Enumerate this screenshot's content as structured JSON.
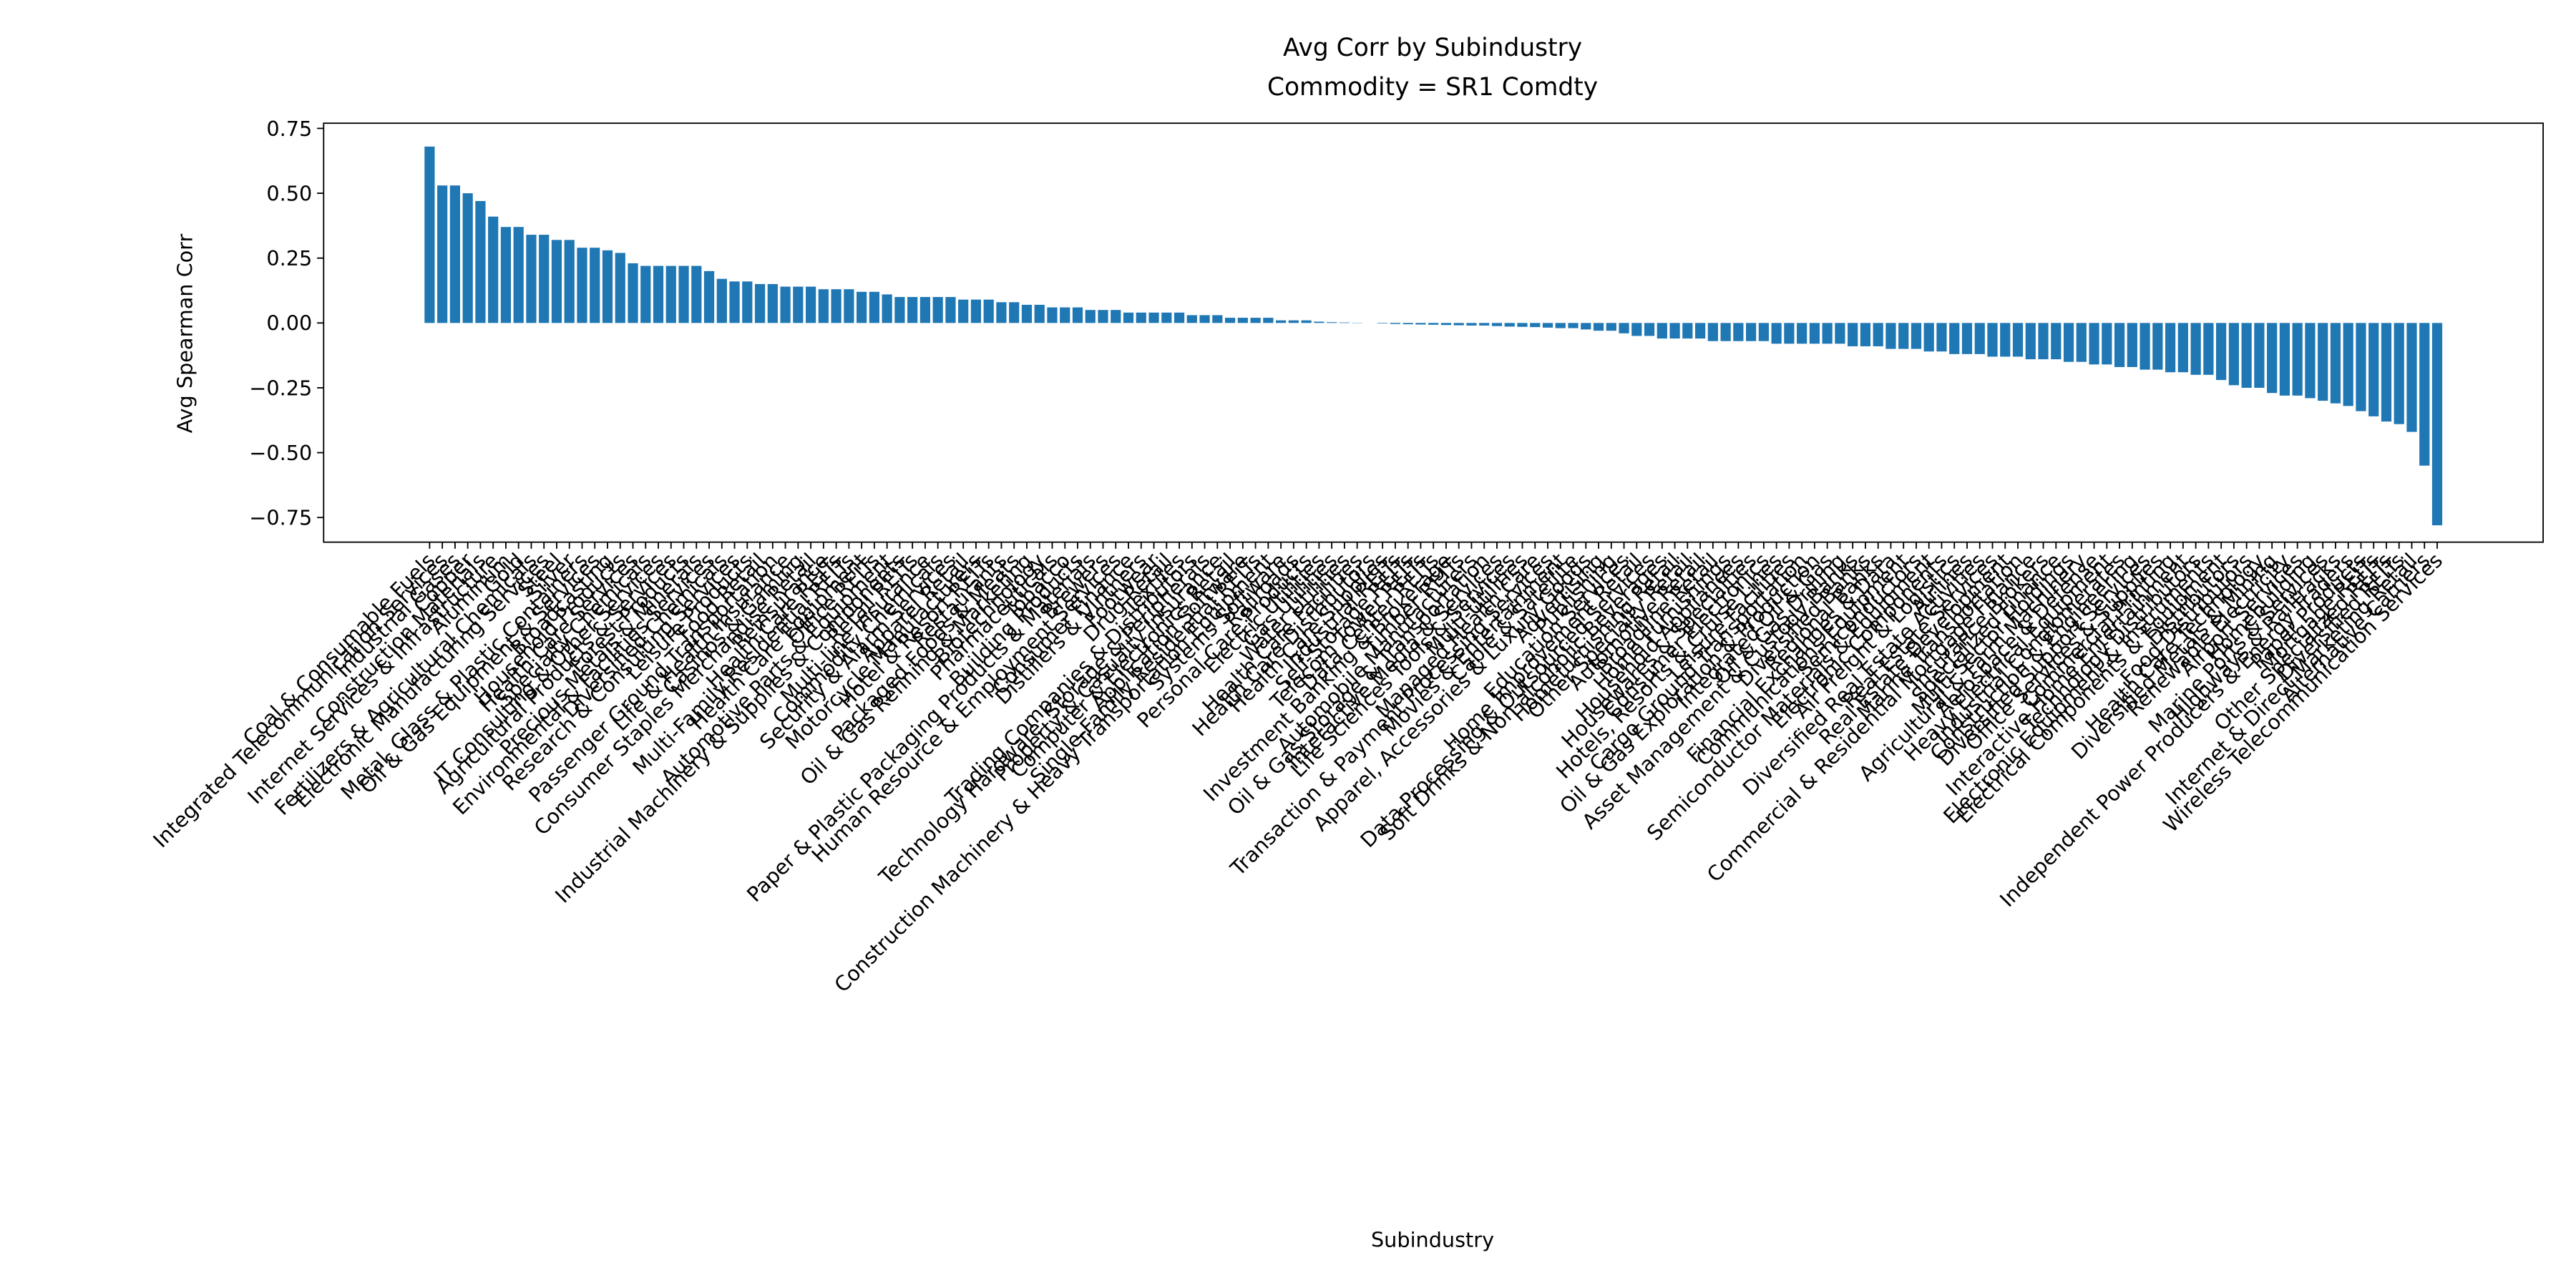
{
  "chart_data": {
    "type": "bar",
    "title": "Avg Corr by Subindustry",
    "subtitle": "Commodity = SR1 Comdty",
    "x_label": "Subindustry",
    "y_label": "Avg Spearman Corr",
    "color": "#1f77b4",
    "grid": false,
    "ylim": [
      -0.845,
      0.77
    ],
    "yticks": [
      {
        "value": -0.75,
        "label": "−0.75"
      },
      {
        "value": -0.5,
        "label": "−0.50"
      },
      {
        "value": -0.25,
        "label": "−0.25"
      },
      {
        "value": 0,
        "label": "0.00"
      },
      {
        "value": 0.25,
        "label": "0.25"
      },
      {
        "value": 0.5,
        "label": "0.50"
      },
      0.75
    ],
    "categories": [
      "Coal & Consumable Fuels",
      "Integrated Telecommunication Services",
      "Industrial Gases",
      "Copper",
      "Construction Materials",
      "Internet Services & Infrastructure",
      "Aluminum",
      "Gold",
      "Fertilizers & Agricultural Chemicals",
      "Electronic Manufacturing Services",
      "Steel",
      "Silver",
      "Metal, Glass & Plastic Containers",
      "Oil & Gas Equipment & Services",
      "Broadcasting",
      "Household Products",
      "Health Care Services",
      "Specialty Chemicals",
      "IT Consulting & Other Services",
      "Agricultural Products & Services",
      "Forest Products",
      "Precious Metals & Minerals",
      "Environmental & Facilities Services",
      "Diversified Chemicals",
      "Research & Consulting Services",
      "Leisure Products",
      "Food Retail",
      "Passenger Ground Transportation",
      "Life & Health Insurance",
      "Casinos & Gaming",
      "Consumer Staples Merchandise Retail",
      "Reinsurance",
      "Health Care REITs",
      "Multi-Family Residential REITs",
      "Health Care Equipment",
      "Office REITs",
      "Automotive Parts & Equipment",
      "Industrial Machinery & Supplies & Components",
      "Retail REITs",
      "Multi-line Insurance",
      "Commodity Chemicals",
      "Security & Alarm Services",
      "Apparel Retail",
      "Motorcycle Manufacturers",
      "Hotel & Resort REITs",
      "Restaurants",
      "Packaged Foods & Meats",
      "Oil & Gas Refining & Marketing",
      "Biotechnology",
      "Pharmaceuticals",
      "Tobacco",
      "Building Products",
      "Paper & Plastic Packaging Products & Materials",
      "Brewers",
      "Human Resource & Employment Services",
      "Consumer Finance",
      "Distillers & Vintners",
      "Footwear",
      "Drug Retail",
      "Textiles",
      "Trading Companies & Distributors",
      "Technology Hardware, Storage & Peripherals",
      "Property & Casualty Insurance",
      "Computer & Electronics Retail",
      "Application Software",
      "Single-Family Residential REITs",
      "Construction Machinery & Heavy Transportation Equipment",
      "Systems Software",
      "Railroads",
      "Personal Care Products",
      "Electric Utilities",
      "Gas Utilities",
      "Water Utilities",
      "Health Care Facilities",
      "Health Care Distributors",
      "Health Care Supplies",
      "Industrial REITs",
      "Self-Storage REITs",
      "Telecom Tower REITs",
      "Data Center REITs",
      "Investment Banking & Brokerage",
      "Timber REITs",
      "Automobile Manufacturers",
      "Oil & Gas Storage & Transportation",
      "Interactive Media & Services",
      "Life Sciences Tools & Services",
      "Multi-Utilities",
      "Managed Health Care",
      "Transaction & Payment Processing Services",
      "Movies & Entertainment",
      "Cable & Satellite",
      "Apparel, Accessories & Luxury Goods",
      "Advertising",
      "Publishing",
      "Education Services",
      "Home Improvement Retail",
      "Data Processing & Outsourced Services",
      "Soft Drinks & Non-alcoholic Beverages",
      "Homefurnishing Retail",
      "Other Specialty Retail",
      "Automotive Retail",
      "Broadline Retail",
      "Home Furnishings",
      "Household Appliances",
      "Housewares & Specialties",
      "Consumer Electronics",
      "Hotels, Resorts & Cruise Lines",
      "Leisure Facilities",
      "Cargo Ground Transportation",
      "Oil & Gas Exploration & Production",
      "Integrated Oil & Gas",
      "Oil & Gas Drilling",
      "Asset Management & Custody Banks",
      "Diversified Banks",
      "Regional Banks",
      "Financial Exchanges & Data",
      "Communications Equipment",
      "Semiconductors",
      "Semiconductor Materials & Equipment",
      "Electronic Components",
      "Air Freight & Logistics",
      "Airlines",
      "Diversified Real Estate Activities",
      "Real Estate Services",
      "Real Estate Development",
      "Marine Transportation",
      "Commercial & Residential Mortgage Finance",
      "Insurance Brokers",
      "Specialized Finance",
      "Multi-Sector Holdings",
      "Agricultural & Farm Machinery",
      "Aerospace & Defense",
      "Heavy Electrical Equipment",
      "Industrial Conglomerates",
      "Construction & Engineering",
      "Diversified Support Services",
      "Office Services & Supplies",
      "Commercial Printing",
      "Interactive Home Entertainment",
      "Technology Distributors",
      "Electronic Equipment & Instruments",
      "Electrical Components & Equipment",
      "Distributors",
      "Food Distributors",
      "Health Care Technology",
      "Diversified Metals & Mining",
      "Renewable Electricity",
      "Airport Services",
      "Homebuilding",
      "Marine Ports & Services",
      "Highways & Railtracks",
      "Independent Power Producers & Energy Traders",
      "Paper Products",
      "Mortgage REITs",
      "Other Specialized REITs",
      "Diversified REITs",
      "Internet & Direct Marketing Retail",
      "Alternative Carriers",
      "Wireless Telecommunication Services"
    ],
    "values": [
      0.68,
      0.53,
      0.53,
      0.5,
      0.47,
      0.41,
      0.37,
      0.37,
      0.34,
      0.34,
      0.32,
      0.32,
      0.29,
      0.29,
      0.28,
      0.27,
      0.23,
      0.22,
      0.22,
      0.22,
      0.22,
      0.22,
      0.2,
      0.17,
      0.16,
      0.16,
      0.15,
      0.15,
      0.14,
      0.14,
      0.14,
      0.13,
      0.13,
      0.13,
      0.12,
      0.12,
      0.11,
      0.1,
      0.1,
      0.1,
      0.1,
      0.1,
      0.09,
      0.09,
      0.09,
      0.08,
      0.08,
      0.07,
      0.07,
      0.06,
      0.06,
      0.06,
      0.05,
      0.05,
      0.05,
      0.04,
      0.04,
      0.04,
      0.04,
      0.04,
      0.03,
      0.03,
      0.03,
      0.02,
      0.02,
      0.02,
      0.02,
      0.01,
      0.01,
      0.01,
      0.005,
      0.003,
      0.002,
      0.001,
      0,
      -0.002,
      -0.004,
      -0.005,
      -0.006,
      -0.007,
      -0.008,
      -0.009,
      -0.01,
      -0.01,
      -0.012,
      -0.014,
      -0.015,
      -0.016,
      -0.018,
      -0.02,
      -0.02,
      -0.025,
      -0.03,
      -0.03,
      -0.04,
      -0.05,
      -0.05,
      -0.06,
      -0.06,
      -0.06,
      -0.06,
      -0.07,
      -0.07,
      -0.07,
      -0.07,
      -0.07,
      -0.08,
      -0.08,
      -0.08,
      -0.08,
      -0.08,
      -0.08,
      -0.09,
      -0.09,
      -0.09,
      -0.1,
      -0.1,
      -0.1,
      -0.11,
      -0.11,
      -0.12,
      -0.12,
      -0.12,
      -0.13,
      -0.13,
      -0.13,
      -0.14,
      -0.14,
      -0.14,
      -0.15,
      -0.15,
      -0.16,
      -0.16,
      -0.17,
      -0.17,
      -0.18,
      -0.18,
      -0.19,
      -0.19,
      -0.2,
      -0.2,
      -0.22,
      -0.24,
      -0.25,
      -0.25,
      -0.27,
      -0.28,
      -0.28,
      -0.29,
      -0.3,
      -0.31,
      -0.32,
      -0.34,
      -0.36,
      -0.38,
      -0.39,
      -0.42,
      -0.55,
      -0.78
    ]
  }
}
